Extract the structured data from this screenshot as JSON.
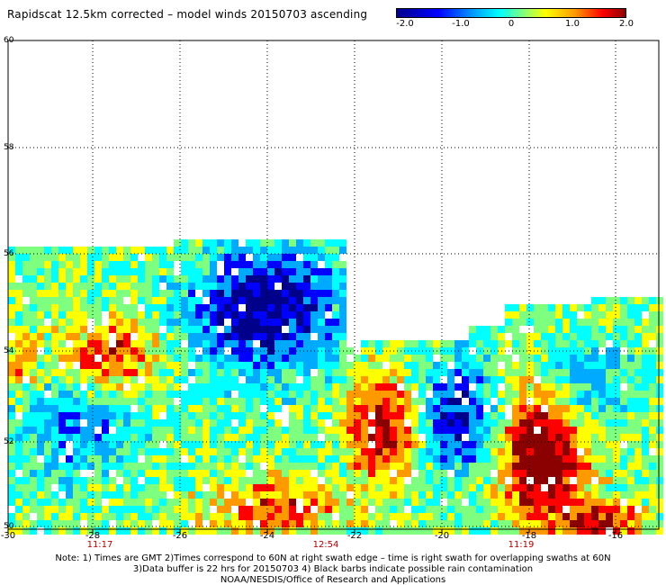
{
  "title": "Rapidscat 12.5km corrected – model winds 20150703 ascending",
  "colorbar": {
    "ticks": [
      "-2.0",
      "-1.0",
      "0",
      "1.0",
      "2.0"
    ],
    "colors": [
      "#00008b",
      "#0000ff",
      "#00aaff",
      "#00ffff",
      "#7fff7f",
      "#ffff00",
      "#ff9900",
      "#ff0000",
      "#8b0000"
    ]
  },
  "map": {
    "lon_range": [
      -30,
      -15
    ],
    "lat_range": [
      50,
      60
    ],
    "lon_ticks": [
      "-30",
      "-28",
      "-26",
      "-24",
      "-22",
      "-20",
      "-18",
      "-16"
    ],
    "lat_ticks": [
      "60",
      "58",
      "56",
      "54",
      "52",
      "50"
    ],
    "times": [
      "11:17",
      "12:54",
      "11:19"
    ],
    "gridlines": "dotted"
  },
  "notes": [
    "Note: 1) Times are GMT 2)Times correspond to 60N at right swath edge – time is right swath for overlapping swaths at 60N",
    "3)Data buffer is 22 hrs for 20150703 4) Black barbs indicate possible rain contamination",
    "NOAA/NESDIS/Office of Research and Applications"
  ]
}
